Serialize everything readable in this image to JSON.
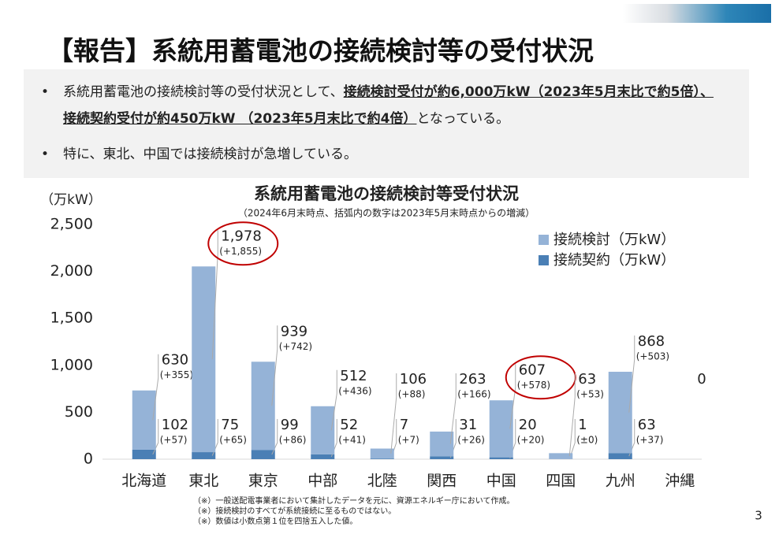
{
  "header": {
    "title": "【報告】系統用蓄電池の接続検討等の受付状況",
    "page_number": "3"
  },
  "bullets": [
    [
      "系統用蓄電池の接続検討等の受付状況として、",
      "接続検討受付が約6,000万kW（2023年5月末比で約5倍）、接続契約受付が約450万kW （2023年5月末比で約4倍）",
      "となっている。"
    ],
    [
      "特に、東北、中国では接続検討が急増している。"
    ]
  ],
  "chart_data": {
    "type": "stacked_bar",
    "title": "系統用蓄電池の接続検討等受付状況",
    "subtitle": "（2024年6月末時点、括弧内の数字は2023年5月末時点からの増減）",
    "y_label": "（万kW）",
    "categories": [
      "北海道",
      "東北",
      "東京",
      "中部",
      "北陸",
      "関西",
      "中国",
      "四国",
      "九州",
      "沖縄"
    ],
    "series": [
      {
        "name": "接続契約（万kW）",
        "color": "#4a7fb5",
        "values": [
          102,
          75,
          99,
          52,
          7,
          31,
          20,
          1,
          63,
          0
        ],
        "value_labels": [
          "102",
          "75",
          "99",
          "52",
          "7",
          "31",
          "20",
          "1",
          "63",
          null
        ],
        "change_labels": [
          "(+57)",
          "(+65)",
          "(+86)",
          "(+41)",
          "(+7)",
          "(+26)",
          "(+20)",
          "(±0)",
          "(+37)",
          null
        ]
      },
      {
        "name": "接続検討（万kW）",
        "color": "#95b3d7",
        "values": [
          630,
          1978,
          939,
          512,
          106,
          263,
          607,
          63,
          868,
          0
        ],
        "value_labels": [
          "630",
          "1,978",
          "939",
          "512",
          "106",
          "263",
          "607",
          "63",
          "868",
          "0"
        ],
        "change_labels": [
          "(+355)",
          "(+1,855)",
          "(+742)",
          "(+436)",
          "(+88)",
          "(+166)",
          "(+578)",
          "(+53)",
          "(+503)",
          null
        ]
      }
    ],
    "highlight": [
      1,
      6
    ],
    "legend": "upper right",
    "ylim": [
      0,
      2500
    ],
    "yticks": [
      0,
      500,
      {
        "value": 1000,
        "label": "1,000"
      },
      {
        "value": 1500,
        "label": "1,500"
      },
      {
        "value": 2000,
        "label": "2,000"
      },
      {
        "value": 2500,
        "label": "2,500"
      }
    ],
    "grid": false
  },
  "notes": [
    "（※）一般送配電事業者において集計したデータを元に、資源エネルギー庁において作成。",
    "（※）接続検討のすべてが系統接続に至るものではない。",
    "（※）数値は小数点第１位を四捨五入した値。"
  ]
}
